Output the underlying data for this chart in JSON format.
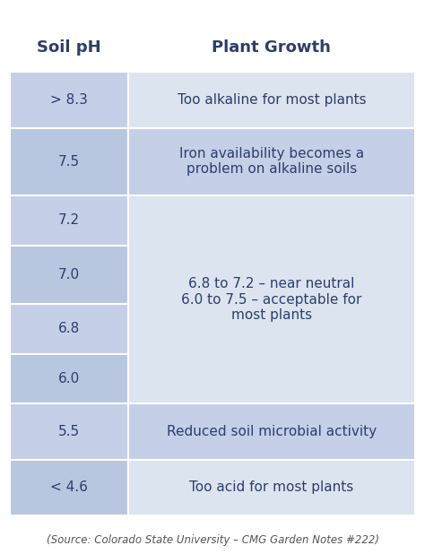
{
  "header_col1": "Soil pH",
  "header_col2": "Plant Growth",
  "header_bg": "#ffffff",
  "header_text_color": "#2c3e6b",
  "rows": [
    {
      "ph": "> 8.3",
      "growth": "Too alkaline for most plants",
      "ph_bg": "#c5cfe8",
      "growth_bg": "#dce4f0",
      "growth_span": 1
    },
    {
      "ph": "7.5",
      "growth": "Iron availability becomes a\nproblem on alkaline soils",
      "ph_bg": "#b8c6e0",
      "growth_bg": "#c5cfe8",
      "growth_span": 1
    },
    {
      "ph": "7.2",
      "growth": "",
      "ph_bg": "#c5cfe8",
      "growth_bg": "#dce4f0",
      "growth_span": 0
    },
    {
      "ph": "7.0",
      "growth": "6.8 to 7.2 – near neutral\n6.0 to 7.5 – acceptable for\nmost plants",
      "ph_bg": "#b8c6e0",
      "growth_bg": "#dce4f0",
      "growth_span": 0
    },
    {
      "ph": "6.8",
      "growth": "",
      "ph_bg": "#c5cfe8",
      "growth_bg": "#dce4f0",
      "growth_span": 0
    },
    {
      "ph": "6.0",
      "growth": "",
      "ph_bg": "#b8c6e0",
      "growth_bg": "#dce4f0",
      "growth_span": 0
    },
    {
      "ph": "5.5",
      "growth": "Reduced soil microbial activity",
      "ph_bg": "#c5cfe8",
      "growth_bg": "#c5cfe8",
      "growth_span": 1
    },
    {
      "ph": "< 4.6",
      "growth": "Too acid for most plants",
      "ph_bg": "#b8c6e0",
      "growth_bg": "#dce4f0",
      "growth_span": 1
    }
  ],
  "source_text": "(Source: Colorado State University – CMG Garden Notes #222)",
  "source_color": "#555555",
  "border_color": "#ffffff",
  "figsize": [
    4.74,
    6.18
  ],
  "dpi": 100
}
